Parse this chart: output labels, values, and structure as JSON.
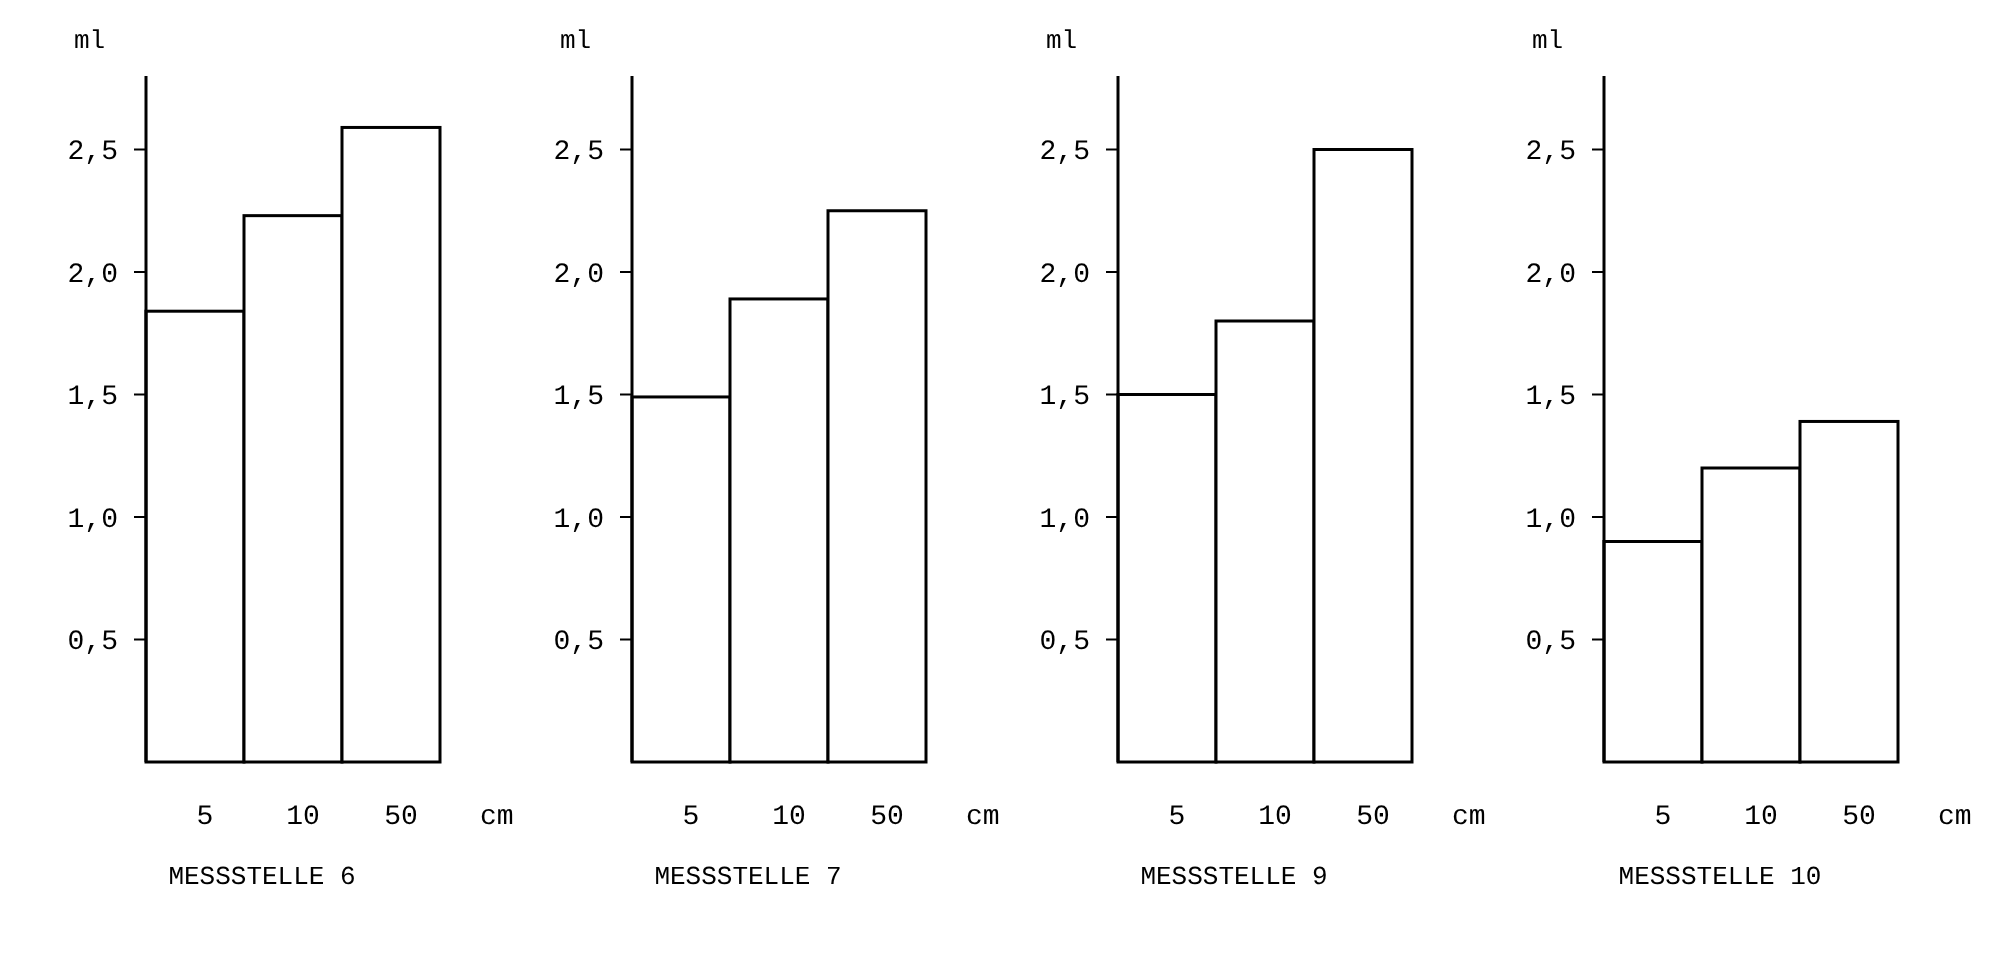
{
  "chart_data": [
    {
      "type": "bar",
      "title": "MESSSTELLE 6",
      "xlabel": "cm",
      "ylabel": "ml",
      "categories": [
        "5",
        "10",
        "50"
      ],
      "values": [
        1.84,
        2.23,
        2.59
      ],
      "color": "#ffffff",
      "ylim": [
        0,
        2.8
      ],
      "yticks": [
        {
          "value": 0.5,
          "label": "0,5"
        },
        {
          "value": 1,
          "label": "1,0"
        },
        {
          "value": 1.5,
          "label": "1,5"
        },
        {
          "value": 2,
          "label": "2,0"
        },
        {
          "value": 2.5,
          "label": "2,5"
        }
      ]
    },
    {
      "type": "bar",
      "title": "MESSSTELLE 7",
      "xlabel": "cm",
      "ylabel": "ml",
      "categories": [
        "5",
        "10",
        "50"
      ],
      "values": [
        1.49,
        1.89,
        2.25
      ],
      "color": "#ffffff",
      "ylim": [
        0,
        2.8
      ],
      "yticks": [
        {
          "value": 0.5,
          "label": "0,5"
        },
        {
          "value": 1,
          "label": "1,0"
        },
        {
          "value": 1.5,
          "label": "1,5"
        },
        {
          "value": 2,
          "label": "2,0"
        },
        {
          "value": 2.5,
          "label": "2,5"
        }
      ]
    },
    {
      "type": "bar",
      "title": "MESSSTELLE 9",
      "xlabel": "cm",
      "ylabel": "ml",
      "categories": [
        "5",
        "10",
        "50"
      ],
      "values": [
        1.5,
        1.8,
        2.5
      ],
      "color": "#ffffff",
      "ylim": [
        0,
        2.8
      ],
      "yticks": [
        {
          "value": 0.5,
          "label": "0,5"
        },
        {
          "value": 1,
          "label": "1,0"
        },
        {
          "value": 1.5,
          "label": "1,5"
        },
        {
          "value": 2,
          "label": "2,0"
        },
        {
          "value": 2.5,
          "label": "2,5"
        }
      ]
    },
    {
      "type": "bar",
      "title": "MESSSTELLE 10",
      "xlabel": "cm",
      "ylabel": "ml",
      "categories": [
        "5",
        "10",
        "50"
      ],
      "values": [
        0.9,
        1.2,
        1.39
      ],
      "color": "#ffffff",
      "ylim": [
        0,
        2.8
      ],
      "yticks": [
        {
          "value": 0.5,
          "label": "0,5"
        },
        {
          "value": 1,
          "label": "1,0"
        },
        {
          "value": 1.5,
          "label": "1,5"
        },
        {
          "value": 2,
          "label": "2,0"
        },
        {
          "value": 2.5,
          "label": "2,5"
        }
      ]
    }
  ]
}
